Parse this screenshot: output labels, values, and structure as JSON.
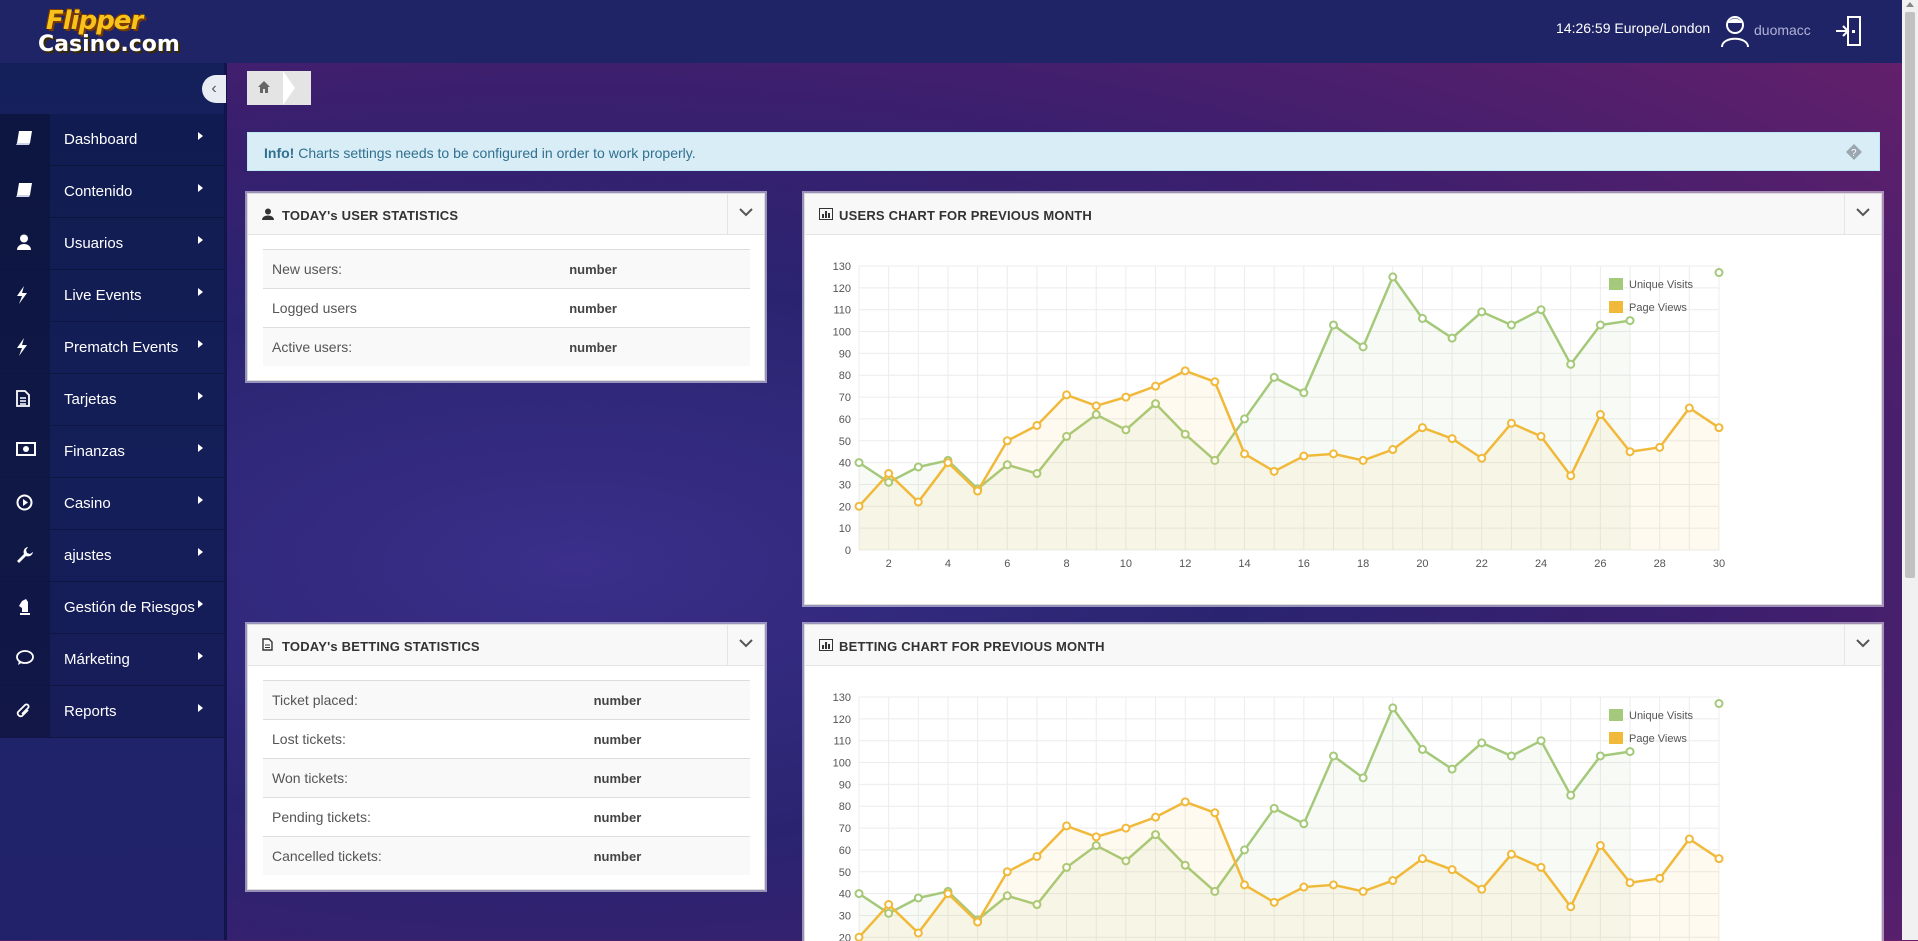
{
  "header": {
    "logo_line1": "Flipper",
    "logo_line2": "Casino.com",
    "time": "14:26:59 Europe/London",
    "username": "duomacc"
  },
  "sidebar": {
    "items": [
      {
        "label": "Dashboard",
        "icon": "book-icon"
      },
      {
        "label": "Contenido",
        "icon": "book-icon"
      },
      {
        "label": "Usuarios",
        "icon": "user-icon"
      },
      {
        "label": "Live Events",
        "icon": "bolt-icon"
      },
      {
        "label": "Prematch Events",
        "icon": "bolt-icon"
      },
      {
        "label": "Tarjetas",
        "icon": "file-icon"
      },
      {
        "label": "Finanzas",
        "icon": "money-icon"
      },
      {
        "label": "Casino",
        "icon": "play-circle-icon"
      },
      {
        "label": "ajustes",
        "icon": "wrench-icon"
      },
      {
        "label": "Gestión de Riesgos",
        "icon": "chess-icon"
      },
      {
        "label": "Márketing",
        "icon": "comment-icon"
      },
      {
        "label": "Reports",
        "icon": "paperclip-icon"
      }
    ]
  },
  "alert": {
    "strong": "Info!",
    "text": " Charts settings needs to be configured in order to work properly."
  },
  "user_stats": {
    "title": "TODAY's USER STATISTICS",
    "rows": [
      {
        "label": "New users:",
        "value": "number"
      },
      {
        "label": "Logged users",
        "value": "number"
      },
      {
        "label": "Active users:",
        "value": "number"
      }
    ]
  },
  "betting_stats": {
    "title": "TODAY's BETTING STATISTICS",
    "rows": [
      {
        "label": "Ticket placed:",
        "value": "number"
      },
      {
        "label": "Lost tickets:",
        "value": "number"
      },
      {
        "label": "Won tickets:",
        "value": "number"
      },
      {
        "label": "Pending tickets:",
        "value": "number"
      },
      {
        "label": "Cancelled tickets:",
        "value": "number"
      }
    ]
  },
  "users_chart_title": "USERS CHART FOR PREVIOUS MONTH",
  "betting_chart_title": "BETTING CHART FOR PREVIOUS MONTH",
  "chart_data": [
    {
      "type": "line",
      "title": "USERS CHART FOR PREVIOUS MONTH",
      "x": [
        1,
        2,
        3,
        4,
        5,
        6,
        7,
        8,
        9,
        10,
        11,
        12,
        13,
        14,
        15,
        16,
        17,
        18,
        19,
        20,
        21,
        22,
        23,
        24,
        25,
        26,
        27,
        28,
        29,
        30
      ],
      "x_ticks": [
        2,
        4,
        6,
        8,
        10,
        12,
        14,
        16,
        18,
        20,
        22,
        24,
        26,
        28,
        30
      ],
      "y_ticks": [
        0,
        10,
        20,
        30,
        40,
        50,
        60,
        70,
        80,
        90,
        100,
        110,
        120,
        130
      ],
      "ylim": [
        0,
        130
      ],
      "grid": true,
      "legend_position": "top-right",
      "series": [
        {
          "name": "Unique Visits",
          "color": "#a5c97a",
          "values": [
            40,
            31,
            38,
            41,
            28,
            39,
            35,
            52,
            62,
            55,
            67,
            53,
            41,
            60,
            79,
            72,
            103,
            93,
            125,
            106,
            97,
            109,
            103,
            110,
            85,
            103,
            105,
            null,
            null,
            127
          ]
        },
        {
          "name": "Page Views",
          "color": "#f0b93a",
          "values": [
            20,
            35,
            22,
            40,
            27,
            50,
            57,
            71,
            66,
            70,
            75,
            82,
            77,
            44,
            36,
            43,
            44,
            41,
            46,
            56,
            51,
            42,
            58,
            52,
            34,
            62,
            45,
            47,
            65,
            56
          ]
        }
      ]
    },
    {
      "type": "line",
      "title": "BETTING CHART FOR PREVIOUS MONTH",
      "x": [
        1,
        2,
        3,
        4,
        5,
        6,
        7,
        8,
        9,
        10,
        11,
        12,
        13,
        14,
        15,
        16,
        17,
        18,
        19,
        20,
        21,
        22,
        23,
        24,
        25,
        26,
        27,
        28,
        29,
        30
      ],
      "y_ticks": [
        20,
        30,
        40,
        50,
        60,
        70,
        80,
        90,
        100,
        110,
        120,
        130
      ],
      "ylim": [
        0,
        130
      ],
      "grid": true,
      "legend_position": "top-right",
      "series": [
        {
          "name": "Unique Visits",
          "color": "#a5c97a",
          "values": [
            40,
            31,
            38,
            41,
            28,
            39,
            35,
            52,
            62,
            55,
            67,
            53,
            41,
            60,
            79,
            72,
            103,
            93,
            125,
            106,
            97,
            109,
            103,
            110,
            85,
            103,
            105,
            null,
            null,
            127
          ]
        },
        {
          "name": "Page Views",
          "color": "#f0b93a",
          "values": [
            20,
            35,
            22,
            40,
            27,
            50,
            57,
            71,
            66,
            70,
            75,
            82,
            77,
            44,
            36,
            43,
            44,
            41,
            46,
            56,
            51,
            42,
            58,
            52,
            34,
            62,
            45,
            47,
            65,
            56
          ]
        }
      ]
    }
  ]
}
